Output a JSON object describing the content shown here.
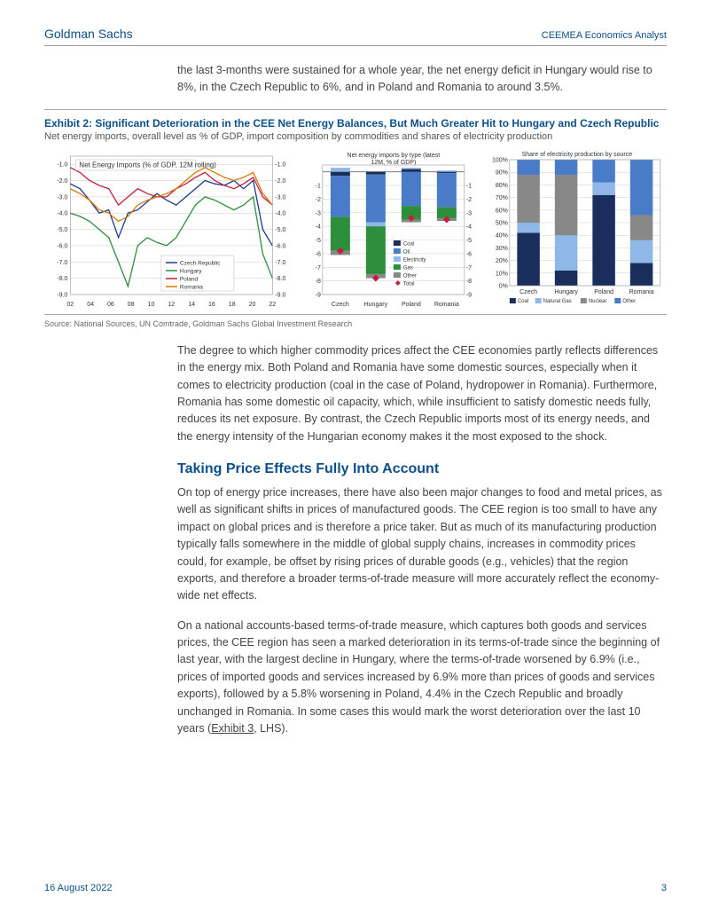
{
  "header": {
    "brand": "Goldman Sachs",
    "report": "CEEMEA Economics Analyst"
  },
  "intro_para": "the last 3-months were sustained for a whole year, the net energy deficit in Hungary would rise to 8%, in the Czech Republic to 6%, and in Poland and Romania to around 3.5%.",
  "exhibit": {
    "title": "Exhibit 2: Significant Deterioration in the CEE Net Energy Balances, But Much Greater Hit to Hungary and Czech Republic",
    "subtitle": "Net energy imports, overall level as % of GDP, import composition by commodities and shares of electricity production",
    "source": "Source: National Sources, UN Comtrade, Goldman Sachs Global Investment Research"
  },
  "chart1": {
    "type": "line",
    "title": "Net Energy Imports (% of GDP, 12M rolling)",
    "title_fontsize": 8,
    "x_ticks": [
      "02",
      "04",
      "06",
      "08",
      "10",
      "12",
      "14",
      "16",
      "18",
      "20",
      "22"
    ],
    "y_ticks": [
      -1.0,
      -2.0,
      -3.0,
      -4.0,
      -5.0,
      -6.0,
      -7.0,
      -8.0,
      -9.0
    ],
    "ylim": [
      -9.0,
      -0.5
    ],
    "series": [
      {
        "name": "Czech Republic",
        "color": "#1f3a8a",
        "values": [
          -2.2,
          -2.5,
          -3.2,
          -4.0,
          -3.8,
          -5.5,
          -4.0,
          -3.8,
          -3.3,
          -2.8,
          -3.2,
          -3.5,
          -3.0,
          -2.5,
          -2.0,
          -2.2,
          -2.3,
          -2.0,
          -2.5,
          -2.0,
          -5.0,
          -6.0
        ]
      },
      {
        "name": "Hungary",
        "color": "#2d8f3c",
        "values": [
          -4.0,
          -4.2,
          -4.5,
          -5.0,
          -5.5,
          -7.0,
          -8.5,
          -6.0,
          -5.5,
          -5.8,
          -6.0,
          -5.5,
          -4.5,
          -3.5,
          -3.0,
          -3.2,
          -3.5,
          -3.8,
          -3.5,
          -3.0,
          -6.5,
          -8.0
        ]
      },
      {
        "name": "Poland",
        "color": "#c41e3a",
        "values": [
          -1.2,
          -1.5,
          -2.0,
          -2.3,
          -2.5,
          -3.5,
          -3.0,
          -2.5,
          -2.8,
          -3.0,
          -3.0,
          -2.5,
          -2.2,
          -1.8,
          -1.5,
          -2.0,
          -2.3,
          -2.5,
          -2.2,
          -1.8,
          -3.0,
          -3.5
        ]
      },
      {
        "name": "Romania",
        "color": "#d97706",
        "values": [
          -2.5,
          -2.8,
          -3.2,
          -3.8,
          -4.0,
          -4.5,
          -4.2,
          -3.5,
          -3.2,
          -3.0,
          -2.8,
          -2.5,
          -2.0,
          -1.5,
          -1.2,
          -1.5,
          -1.8,
          -2.0,
          -1.8,
          -1.5,
          -2.8,
          -3.5
        ]
      }
    ],
    "legend_pos": "bottom-center",
    "grid_color": "#cccccc",
    "tick_fontsize": 7
  },
  "chart2": {
    "type": "stacked-bar-with-markers",
    "title": "Net energy imports by type (latest 12M, % of GDP)",
    "title_fontsize": 7,
    "categories": [
      "Czech",
      "Hungary",
      "Poland",
      "Romania"
    ],
    "y_ticks": [
      -1,
      -2,
      -3,
      -4,
      -5,
      -6,
      -7,
      -8,
      -9
    ],
    "ylim": [
      -9.0,
      0.5
    ],
    "layers": [
      {
        "name": "Coal",
        "color": "#1a2e5c",
        "values": [
          -0.3,
          -0.2,
          0.2,
          -0.1
        ]
      },
      {
        "name": "Oil",
        "color": "#4a7bc8",
        "values": [
          -3.0,
          -3.5,
          -2.5,
          -2.5
        ]
      },
      {
        "name": "Electricity",
        "color": "#8fb8e8",
        "values": [
          0.3,
          -0.3,
          0.1,
          0.1
        ]
      },
      {
        "name": "Gas",
        "color": "#2d8f3c",
        "values": [
          -2.5,
          -3.5,
          -1.0,
          -0.8
        ]
      },
      {
        "name": "Other",
        "color": "#888888",
        "values": [
          -0.3,
          -0.3,
          -0.2,
          -0.2
        ]
      }
    ],
    "total_marker": {
      "name": "Total",
      "color": "#c41e3a",
      "shape": "diamond",
      "values": [
        -5.8,
        -7.8,
        -3.4,
        -3.5
      ]
    },
    "tick_fontsize": 7,
    "grid_color": "#cccccc"
  },
  "chart3": {
    "type": "stacked-bar-100",
    "title": "Share of electricity production by source",
    "title_fontsize": 7,
    "categories": [
      "Czech",
      "Hungary",
      "Poland",
      "Romania"
    ],
    "y_ticks": [
      "0%",
      "10%",
      "20%",
      "30%",
      "40%",
      "50%",
      "60%",
      "70%",
      "80%",
      "90%",
      "100%"
    ],
    "layers": [
      {
        "name": "Coal",
        "color": "#1a2e5c",
        "values": [
          42,
          12,
          72,
          18
        ]
      },
      {
        "name": "Natural Gas",
        "color": "#8fb8e8",
        "values": [
          8,
          28,
          10,
          18
        ]
      },
      {
        "name": "Nuclear",
        "color": "#888888",
        "values": [
          38,
          48,
          0,
          20
        ]
      },
      {
        "name": "Other",
        "color": "#4a7bc8",
        "values": [
          12,
          12,
          18,
          44
        ]
      }
    ],
    "tick_fontsize": 7,
    "grid_color": "#cccccc"
  },
  "para2": "The degree to which higher commodity prices affect the CEE economies partly reflects differences in the energy mix. Both Poland and Romania have some domestic sources, especially when it comes to electricity production (coal in the case of Poland, hydropower in Romania). Furthermore, Romania has some domestic oil capacity, which, while insufficient to satisfy domestic needs fully, reduces its net exposure. By contrast, the Czech Republic imports most of its energy needs, and the energy intensity of the Hungarian economy makes it the most exposed to the shock.",
  "section_heading": "Taking Price Effects Fully Into Account",
  "para3": "On top of energy price increases, there have also been major changes to food and metal prices, as well as significant shifts in prices of manufactured goods. The CEE region is too small to have any impact on global prices and is therefore a price taker. But as much of its manufacturing production typically falls somewhere in the middle of global supply chains, increases in commodity prices could, for example, be offset by rising prices of durable goods (e.g., vehicles) that the region exports, and therefore a broader terms-of-trade measure will more accurately reflect the economy-wide net effects.",
  "para4_a": "On a national accounts-based terms-of-trade measure, which captures both goods and services prices, the CEE region has seen a marked deterioration in its terms-of-trade since the beginning of last year, with the largest decline in Hungary, where the terms-of-trade worsened by 6.9% (i.e., prices of imported goods and services increased by 6.9% more than prices of goods and services exports), followed by a 5.8% worsening in Poland, 4.4% in the Czech Republic and broadly unchanged in Romania. In some cases this would mark the worst deterioration over the last 10 years (",
  "para4_link": "Exhibit 3",
  "para4_b": ", LHS).",
  "footer": {
    "date": "16 August 2022",
    "page": "3"
  }
}
